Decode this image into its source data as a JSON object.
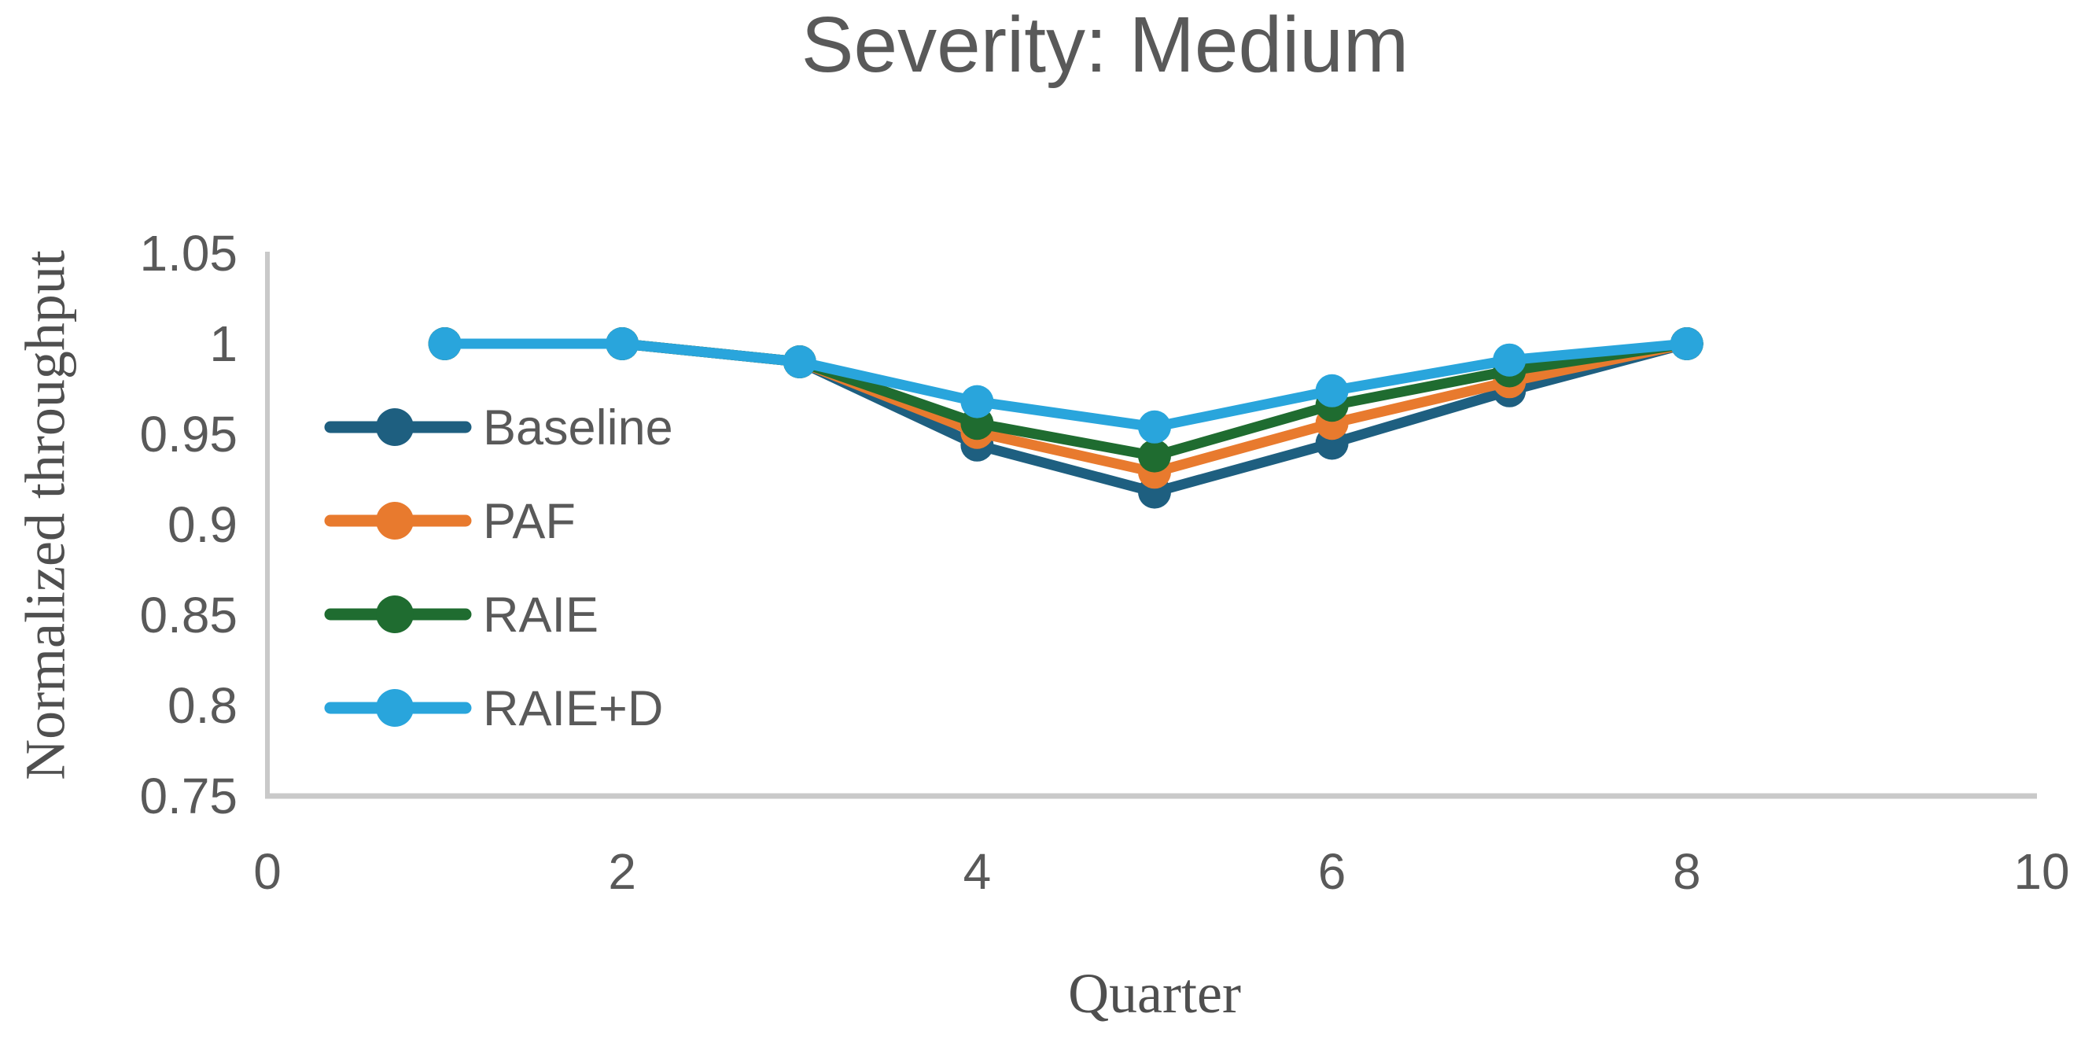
{
  "chart_data": {
    "type": "line",
    "title": "Severity: Medium",
    "xlabel": "Quarter",
    "ylabel": "Normalized throughput",
    "x": [
      1,
      2,
      3,
      4,
      5,
      6,
      7,
      8
    ],
    "xlim": [
      0,
      10
    ],
    "ylim": [
      0.75,
      1.05
    ],
    "x_ticks": [
      "0",
      "2",
      "4",
      "6",
      "8",
      "10"
    ],
    "y_ticks": [
      "1.05",
      "1",
      "0.95",
      "0.9",
      "0.85",
      "0.8",
      "0.75"
    ],
    "grid": false,
    "legend_position": "inside-left",
    "axis_color": "#C9C9C9",
    "text_color": "#595959",
    "series": [
      {
        "name": "Baseline",
        "color": "#1E5F80",
        "values": [
          1.0,
          1.0,
          0.99,
          0.944,
          0.918,
          0.945,
          0.974,
          1.0
        ]
      },
      {
        "name": "PAF",
        "color": "#E87A2E",
        "values": [
          1.0,
          1.0,
          0.99,
          0.951,
          0.929,
          0.956,
          0.979,
          1.0
        ]
      },
      {
        "name": "RAIE",
        "color": "#1F6C30",
        "values": [
          1.0,
          1.0,
          0.99,
          0.956,
          0.938,
          0.966,
          0.985,
          1.0
        ]
      },
      {
        "name": "RAIE+D",
        "color": "#29A5DC",
        "values": [
          1.0,
          1.0,
          0.99,
          0.968,
          0.954,
          0.974,
          0.991,
          1.0
        ]
      }
    ]
  }
}
